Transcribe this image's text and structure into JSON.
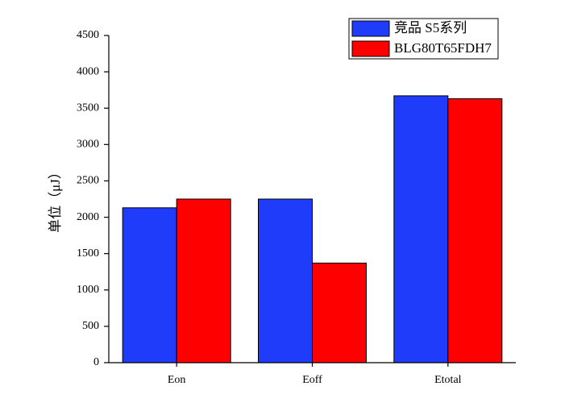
{
  "chart_data": {
    "type": "bar",
    "y_label": "单位（μJ）",
    "categories": [
      "Eon",
      "Eoff",
      "Etotal"
    ],
    "series": [
      {
        "name": "竞品 S5系列",
        "color": "#1f3cfb",
        "values": [
          2130,
          2250,
          3670
        ]
      },
      {
        "name": "BLG80T65FDH7",
        "color": "#ff0000",
        "values": [
          2250,
          1370,
          3630
        ]
      }
    ],
    "ylim": [
      0,
      4500
    ],
    "yticks": [
      0,
      500,
      1000,
      1500,
      2000,
      2500,
      3000,
      3500,
      4000,
      4500
    ],
    "grid": false,
    "legend": "top-right"
  }
}
